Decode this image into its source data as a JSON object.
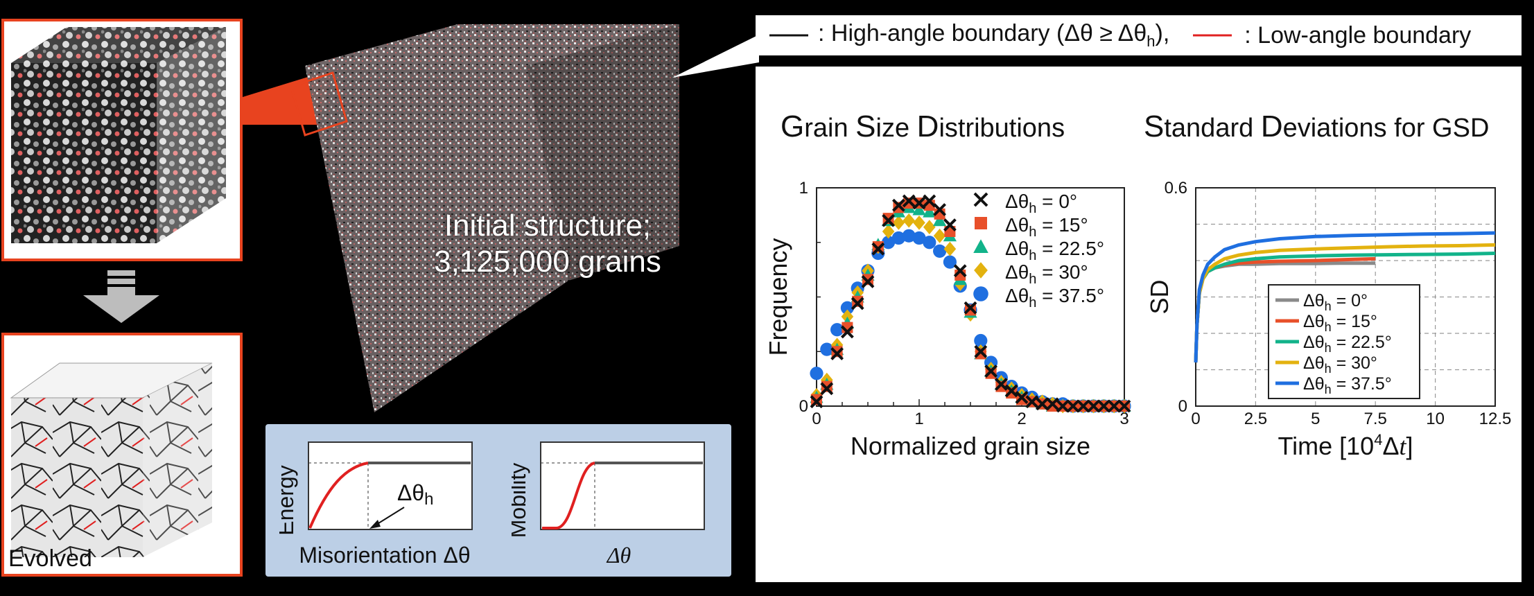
{
  "top_legend": {
    "high_label": ": High-angle boundary (Δθ ≥ Δθ",
    "high_sub": "h",
    "high_close": "),",
    "low_label": ": Low-angle boundary",
    "high_color": "#111111",
    "low_color": "#e02020"
  },
  "left": {
    "evolved_label": "Evolved",
    "initial_line1": "Initial structure;",
    "initial_line2": "3,125,000 grains"
  },
  "inset": {
    "energy_ylabel": "Energy",
    "energy_xlabel": "Misorientation Δθ",
    "energy_annotation": "Δθ",
    "energy_annotation_sub": "h",
    "mobility_ylabel": "Mobility",
    "mobility_xlabel": "Δθ"
  },
  "chart_data": [
    {
      "type": "scatter",
      "title_parts": [
        "G",
        "rain ",
        "S",
        "ize ",
        "D",
        "istributions"
      ],
      "xlabel": "Normalized grain size",
      "ylabel": "Frequency",
      "xlim": [
        0,
        3
      ],
      "ylim": [
        0,
        1
      ],
      "xticks": [
        "0",
        "1",
        "2",
        "3"
      ],
      "yticks": [
        "0",
        "1"
      ],
      "x": [
        0,
        0.1,
        0.2,
        0.3,
        0.4,
        0.5,
        0.6,
        0.7,
        0.8,
        0.9,
        1.0,
        1.1,
        1.2,
        1.3,
        1.4,
        1.5,
        1.6,
        1.7,
        1.8,
        1.9,
        2.0,
        2.1,
        2.2,
        2.3,
        2.4,
        2.5,
        2.6,
        2.7,
        2.8,
        2.9,
        3.0
      ],
      "series": [
        {
          "name": "Δθh = 0°",
          "legend_main": "Δθ",
          "legend_sub": "h",
          "legend_tail": " = 0°",
          "marker": "x",
          "color": "#111111",
          "values": [
            0.02,
            0.08,
            0.24,
            0.34,
            0.47,
            0.57,
            0.72,
            0.85,
            0.92,
            0.94,
            0.93,
            0.94,
            0.9,
            0.83,
            0.62,
            0.45,
            0.25,
            0.16,
            0.1,
            0.07,
            0.04,
            0.02,
            0.01,
            0.01,
            0.0,
            0.0,
            0.0,
            0.0,
            0.0,
            0.0,
            0.0
          ]
        },
        {
          "name": "Δθh = 15°",
          "legend_main": "Δθ",
          "legend_sub": "h",
          "legend_tail": " = 15°",
          "marker": "square",
          "color": "#e8502a",
          "values": [
            0.03,
            0.09,
            0.25,
            0.36,
            0.48,
            0.58,
            0.73,
            0.86,
            0.91,
            0.93,
            0.93,
            0.92,
            0.88,
            0.8,
            0.6,
            0.44,
            0.24,
            0.15,
            0.09,
            0.06,
            0.03,
            0.02,
            0.01,
            0.0,
            0.0,
            0.0,
            0.0,
            0.0,
            0.0,
            0.0,
            0.0
          ]
        },
        {
          "name": "Δθh = 22.5°",
          "legend_main": "Δθ",
          "legend_sub": "h",
          "legend_tail": " = 22.5°",
          "marker": "triangle",
          "color": "#12b38a",
          "values": [
            0.04,
            0.1,
            0.26,
            0.38,
            0.5,
            0.6,
            0.74,
            0.85,
            0.89,
            0.91,
            0.9,
            0.89,
            0.85,
            0.78,
            0.58,
            0.43,
            0.24,
            0.16,
            0.1,
            0.07,
            0.04,
            0.02,
            0.01,
            0.0,
            0.0,
            0.0,
            0.0,
            0.0,
            0.0,
            0.0,
            0.0
          ]
        },
        {
          "name": "Δθh = 30°",
          "legend_main": "Δθ",
          "legend_sub": "h",
          "legend_tail": " = 30°",
          "marker": "diamond",
          "color": "#e3b20f",
          "values": [
            0.05,
            0.12,
            0.28,
            0.41,
            0.52,
            0.62,
            0.73,
            0.8,
            0.84,
            0.85,
            0.84,
            0.82,
            0.78,
            0.72,
            0.56,
            0.42,
            0.25,
            0.17,
            0.11,
            0.08,
            0.05,
            0.03,
            0.02,
            0.01,
            0.0,
            0.0,
            0.0,
            0.0,
            0.0,
            0.0,
            0.0
          ]
        },
        {
          "name": "Δθh = 37.5°",
          "legend_main": "Δθ",
          "legend_sub": "h",
          "legend_tail": " = 37.5°",
          "marker": "circle",
          "color": "#1f6fe0",
          "values": [
            0.15,
            0.26,
            0.35,
            0.45,
            0.54,
            0.62,
            0.7,
            0.75,
            0.77,
            0.78,
            0.77,
            0.75,
            0.71,
            0.66,
            0.55,
            0.44,
            0.3,
            0.2,
            0.13,
            0.09,
            0.06,
            0.04,
            0.02,
            0.01,
            0.01,
            0.0,
            0.0,
            0.0,
            0.0,
            0.0,
            0.0
          ]
        }
      ]
    },
    {
      "type": "line",
      "title_parts": [
        "S",
        "tandard ",
        "D",
        "eviations ",
        "for GSD"
      ],
      "xlabel_main": "Time [10",
      "xlabel_sup": "4",
      "xlabel_tail": "Δ",
      "xlabel_italic": "t",
      "xlabel_close": "]",
      "ylabel": "SD",
      "xlim": [
        0,
        12.5
      ],
      "ylim": [
        0,
        0.6
      ],
      "xticks": [
        "0",
        "2.5",
        "5",
        "7.5",
        "10",
        "12.5"
      ],
      "xtick_values": [
        0,
        2.5,
        5,
        7.5,
        10,
        12.5
      ],
      "yticks": [
        "0",
        "0.6"
      ],
      "series": [
        {
          "name": "Δθh = 0°",
          "legend_main": "Δθ",
          "legend_sub": "h",
          "legend_tail": " = 0°",
          "color": "#8a8a8a",
          "x": [
            0,
            0.05,
            0.15,
            0.3,
            0.5,
            0.8,
            1.2,
            1.8,
            2.5,
            3.5,
            5,
            6,
            7.5
          ],
          "y": [
            0.12,
            0.22,
            0.31,
            0.35,
            0.37,
            0.38,
            0.385,
            0.39,
            0.39,
            0.392,
            0.392,
            0.393,
            0.393
          ]
        },
        {
          "name": "Δθh = 15°",
          "legend_main": "Δθ",
          "legend_sub": "h",
          "legend_tail": " = 15°",
          "color": "#e8502a",
          "x": [
            0,
            0.05,
            0.15,
            0.3,
            0.5,
            0.8,
            1.2,
            1.8,
            2.5,
            3.5,
            5,
            6,
            7.5
          ],
          "y": [
            0.12,
            0.22,
            0.31,
            0.35,
            0.37,
            0.38,
            0.388,
            0.393,
            0.396,
            0.398,
            0.4,
            0.402,
            0.405
          ]
        },
        {
          "name": "Δθh = 22.5°",
          "legend_main": "Δθ",
          "legend_sub": "h",
          "legend_tail": " = 22.5°",
          "color": "#12b38a",
          "x": [
            0,
            0.05,
            0.15,
            0.3,
            0.5,
            0.8,
            1.2,
            1.8,
            2.5,
            3.5,
            5,
            6.5,
            8,
            9.5,
            11,
            12.5
          ],
          "y": [
            0.12,
            0.22,
            0.31,
            0.35,
            0.37,
            0.38,
            0.39,
            0.4,
            0.405,
            0.41,
            0.413,
            0.415,
            0.416,
            0.417,
            0.418,
            0.42
          ]
        },
        {
          "name": "Δθh = 30°",
          "legend_main": "Δθ",
          "legend_sub": "h",
          "legend_tail": " = 30°",
          "color": "#e3b20f",
          "x": [
            0,
            0.05,
            0.15,
            0.3,
            0.5,
            0.8,
            1.2,
            1.8,
            2.5,
            3.5,
            5,
            6.5,
            8,
            9.5,
            11,
            12.5
          ],
          "y": [
            0.12,
            0.22,
            0.31,
            0.35,
            0.375,
            0.39,
            0.405,
            0.415,
            0.422,
            0.428,
            0.432,
            0.435,
            0.438,
            0.44,
            0.441,
            0.443
          ]
        },
        {
          "name": "Δθh = 37.5°",
          "legend_main": "Δθ",
          "legend_sub": "h",
          "legend_tail": " = 37.5°",
          "color": "#1f6fe0",
          "x": [
            0,
            0.05,
            0.15,
            0.3,
            0.5,
            0.8,
            1.2,
            1.8,
            2.5,
            3.5,
            5,
            6.5,
            8,
            9.5,
            11,
            12.5
          ],
          "y": [
            0.12,
            0.22,
            0.32,
            0.36,
            0.39,
            0.41,
            0.43,
            0.443,
            0.452,
            0.46,
            0.466,
            0.469,
            0.471,
            0.473,
            0.474,
            0.476
          ]
        }
      ]
    }
  ]
}
